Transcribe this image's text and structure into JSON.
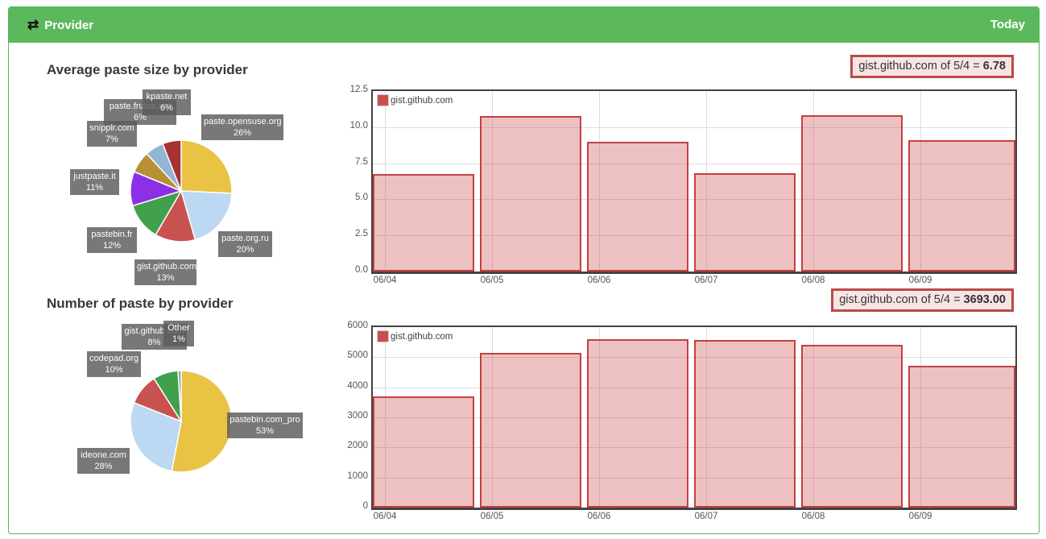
{
  "header": {
    "title": "Provider",
    "icon": "exchange-icon",
    "right_label": "Today"
  },
  "colors": {
    "header_green": "#5cb85c",
    "panel_border": "#56b65a",
    "bar_fill": "rgba(201,68,66,0.33)",
    "bar_border": "#c5403e",
    "callout_bg": "#f7e5e5",
    "callout_border": "#b94b48",
    "pie_label_bg": "rgba(90,90,90,0.82)"
  },
  "chart_data": [
    {
      "type": "pie",
      "title": "Average paste size by provider",
      "slices": [
        {
          "label": "paste.opensuse.org",
          "pct": 26,
          "pct_label": "26%",
          "color": "#e9c344"
        },
        {
          "label": "paste.org.ru",
          "pct": 20,
          "pct_label": "20%",
          "color": "#bcd8f2"
        },
        {
          "label": "gist.github.com",
          "pct": 13,
          "pct_label": "13%",
          "color": "#c85250"
        },
        {
          "label": "pastebin.fr",
          "pct": 12,
          "pct_label": "12%",
          "color": "#41a04c"
        },
        {
          "label": "justpaste.it",
          "pct": 11,
          "pct_label": "11%",
          "color": "#8c30e8"
        },
        {
          "label": "snipplr.com",
          "pct": 7,
          "pct_label": "7%",
          "color": "#b69133"
        },
        {
          "label": "paste.frubar.net",
          "pct": 6,
          "pct_label": "6%",
          "color": "#93b5d5"
        },
        {
          "label": "kpaste.net",
          "pct": 6,
          "pct_label": "6%",
          "color": "#a63232"
        }
      ]
    },
    {
      "type": "pie",
      "title": "Number of paste by provider",
      "slices": [
        {
          "label": "pastebin.com_pro",
          "pct": 53,
          "pct_label": "53%",
          "color": "#e9c344"
        },
        {
          "label": "ideone.com",
          "pct": 28,
          "pct_label": "28%",
          "color": "#bcd8f2"
        },
        {
          "label": "codepad.org",
          "pct": 10,
          "pct_label": "10%",
          "color": "#c85250"
        },
        {
          "label": "gist.github.com",
          "pct": 8,
          "pct_label": "8%",
          "color": "#41a04c"
        },
        {
          "label": "Other",
          "pct": 1,
          "pct_label": "1%",
          "color": "#9a9a9a"
        }
      ]
    },
    {
      "type": "bar",
      "callout_text": "gist.github.com of 5/4 = ",
      "callout_value": "6.78",
      "legend": "gist.github.com",
      "categories": [
        "06/04",
        "06/05",
        "06/06",
        "06/07",
        "06/08",
        "06/09"
      ],
      "values": [
        6.78,
        10.75,
        9.0,
        6.8,
        10.85,
        9.1
      ],
      "ylim": [
        0,
        12.5
      ],
      "ytick_labels": [
        "0.0",
        "2.5",
        "5.0",
        "7.5",
        "10.0",
        "12.5"
      ],
      "grid": true,
      "legend_position": "top-left"
    },
    {
      "type": "bar",
      "callout_text": "gist.github.com of 5/4 = ",
      "callout_value": "3693.00",
      "legend": "gist.github.com",
      "categories": [
        "06/04",
        "06/05",
        "06/06",
        "06/07",
        "06/08",
        "06/09"
      ],
      "values": [
        3693,
        5130,
        5600,
        5570,
        5400,
        4720
      ],
      "ylim": [
        0,
        6000
      ],
      "ytick_labels": [
        "0",
        "1000",
        "2000",
        "3000",
        "4000",
        "5000",
        "6000"
      ],
      "grid": true,
      "legend_position": "top-left"
    }
  ]
}
